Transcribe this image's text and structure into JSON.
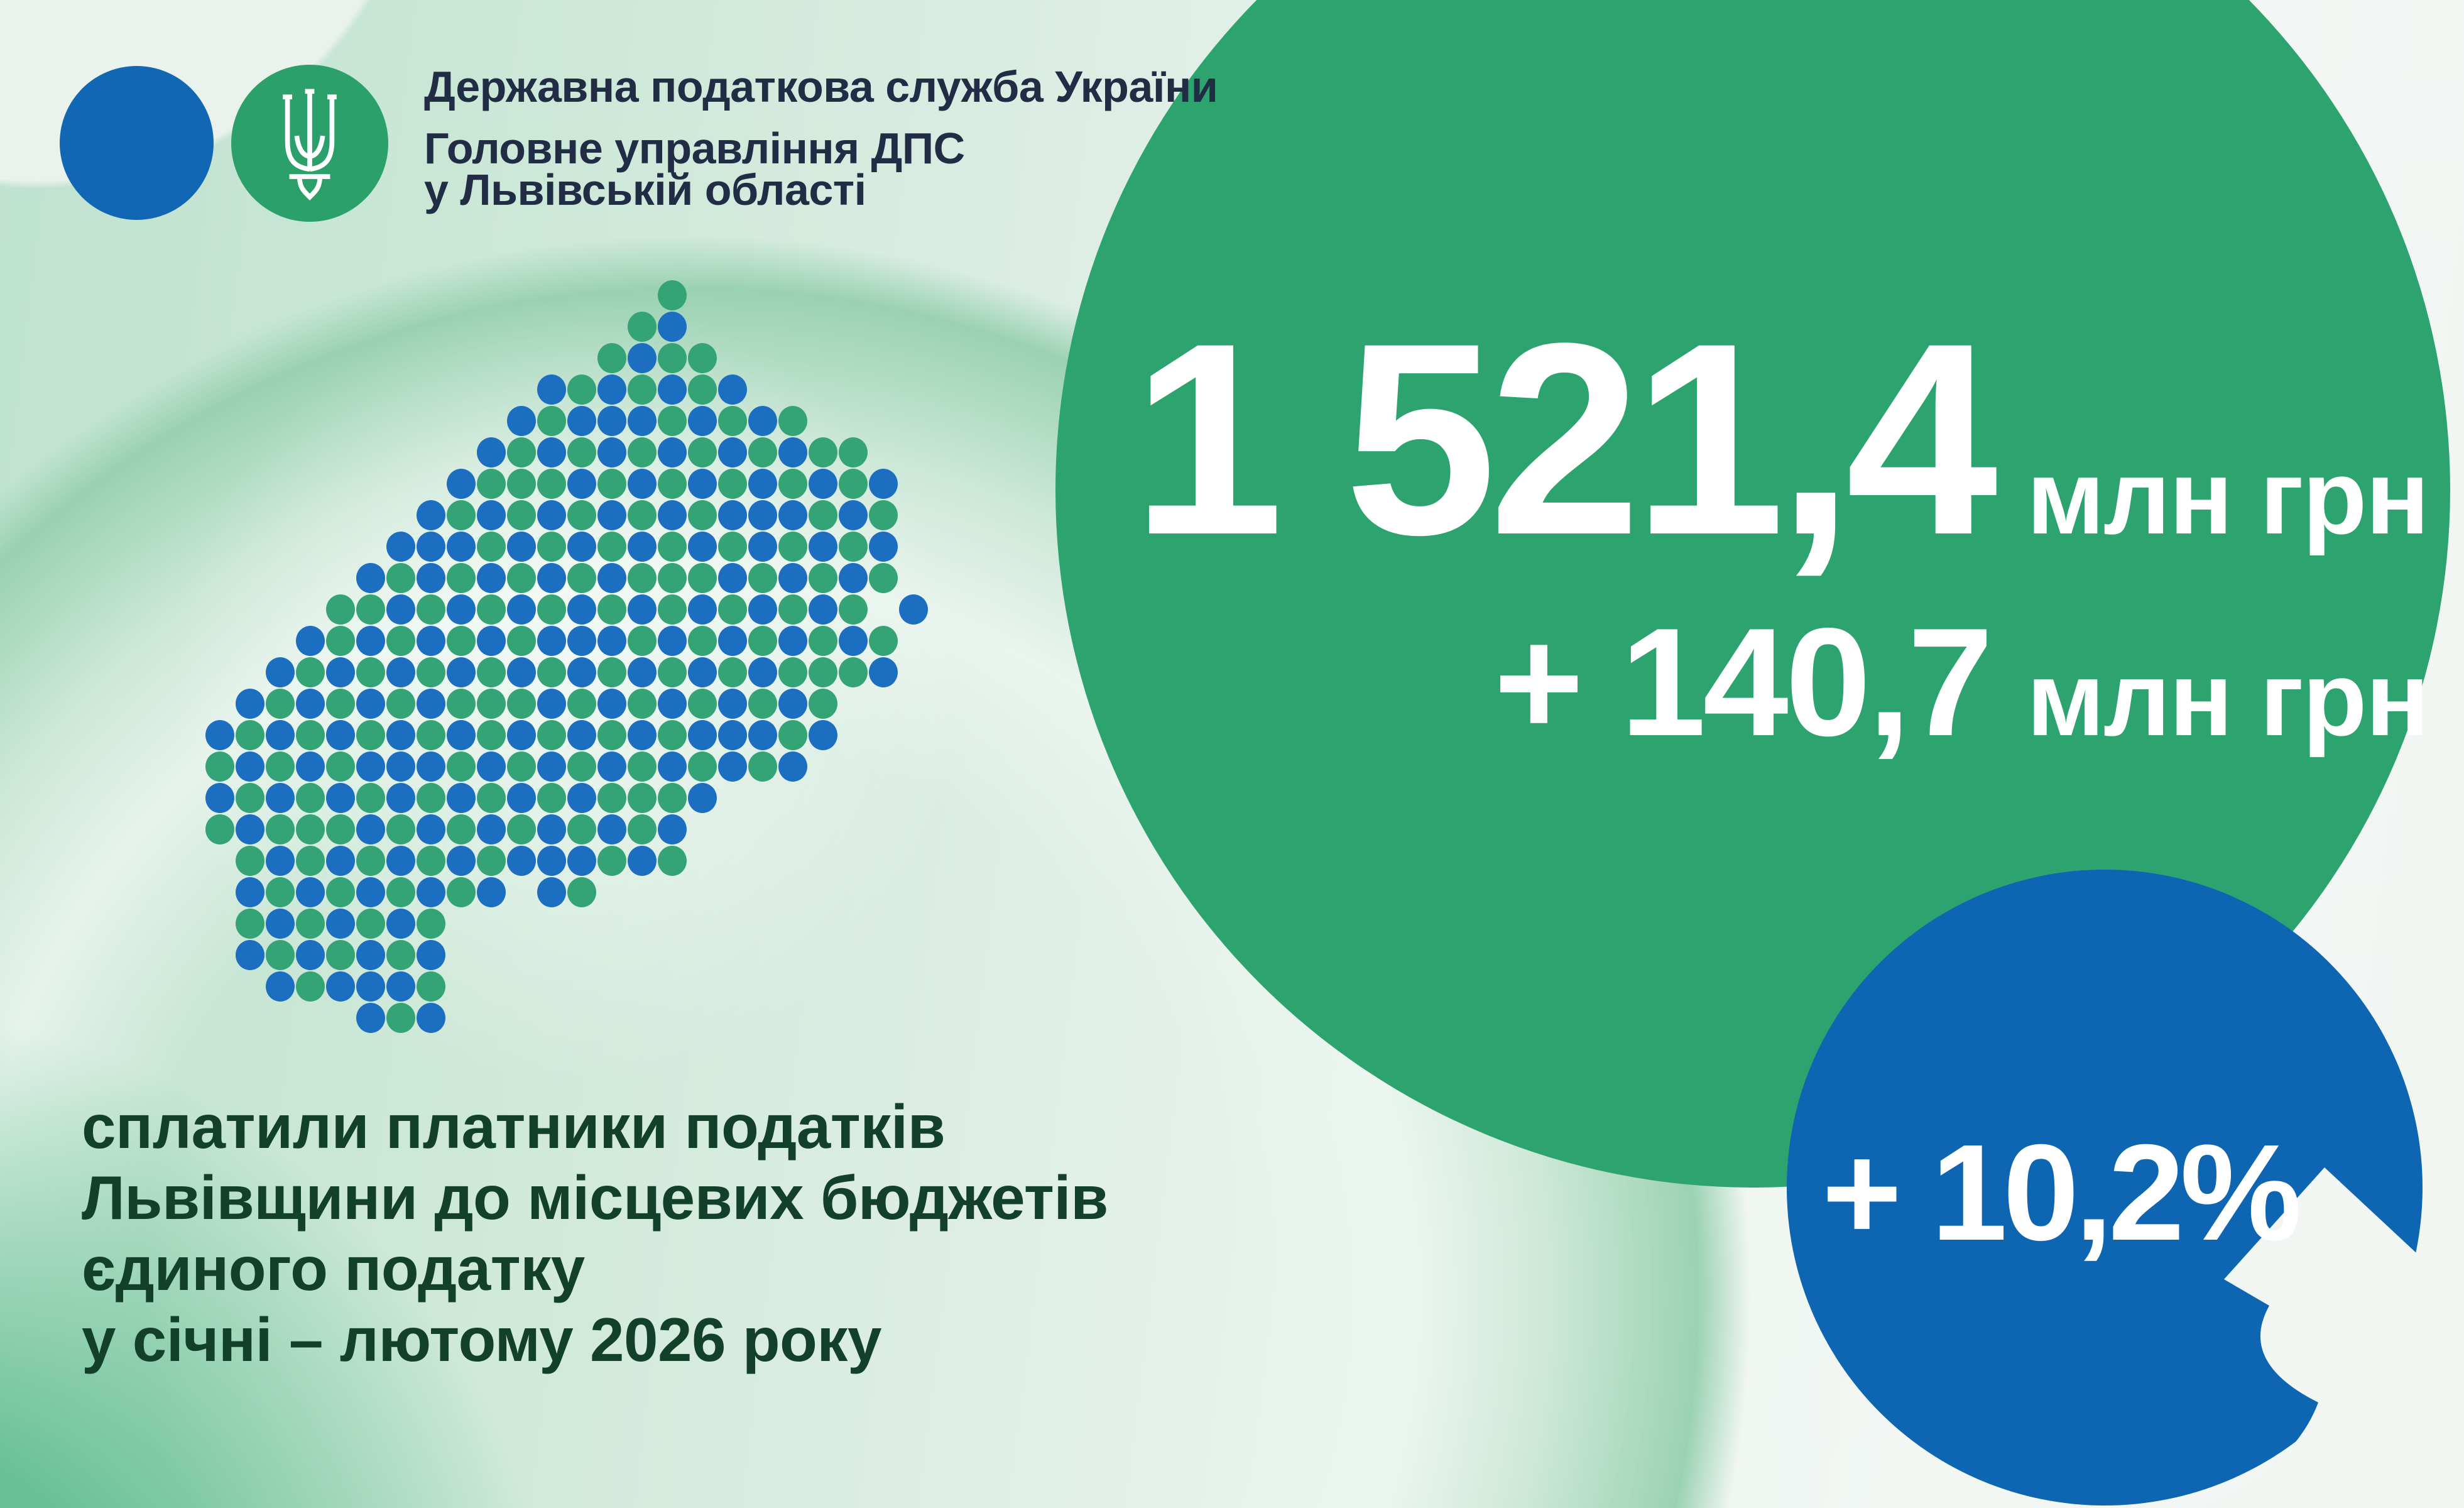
{
  "header": {
    "department": "Державна податкова служба України",
    "office_line1": "Головне управління ДПС",
    "office_line2": "у Львівській області"
  },
  "stats": {
    "total": {
      "value": "1 521,4",
      "unit": "млн грн"
    },
    "delta": {
      "value": "+ 140,7",
      "unit": "млн грн"
    },
    "percent": "+ 10,2%"
  },
  "description": {
    "lines": [
      "сплатили платники податків",
      "Львівщини до місцевих бюджетів",
      "єдиного податку",
      "у січні – лютому 2026 року"
    ]
  },
  "map": {
    "dot_colors": {
      "blue": "#1b6ec0",
      "green": "#34a476"
    },
    "rows": [
      [
        [
          15,
          15
        ]
      ],
      [
        [
          14,
          15
        ]
      ],
      [
        [
          13,
          16
        ]
      ],
      [
        [
          11,
          17
        ]
      ],
      [
        [
          10,
          19
        ]
      ],
      [
        [
          9,
          21
        ]
      ],
      [
        [
          8,
          22
        ]
      ],
      [
        [
          7,
          22
        ]
      ],
      [
        [
          6,
          22
        ]
      ],
      [
        [
          5,
          22
        ]
      ],
      [
        [
          4,
          21
        ],
        [
          23,
          23
        ]
      ],
      [
        [
          3,
          22
        ]
      ],
      [
        [
          2,
          22
        ]
      ],
      [
        [
          1,
          20
        ]
      ],
      [
        [
          0,
          20
        ]
      ],
      [
        [
          0,
          19
        ]
      ],
      [
        [
          0,
          16
        ]
      ],
      [
        [
          0,
          15
        ]
      ],
      [
        [
          1,
          15
        ]
      ],
      [
        [
          1,
          9
        ],
        [
          11,
          12
        ]
      ],
      [
        [
          1,
          7
        ]
      ],
      [
        [
          1,
          7
        ]
      ],
      [
        [
          2,
          7
        ]
      ],
      [
        [
          5,
          7
        ]
      ]
    ]
  },
  "colors": {
    "accent_green": "#2da470",
    "accent_blue": "#0e65b2",
    "logo_blue": "#1267b4",
    "logo_green": "#2ba06a",
    "header_text": "#212d44",
    "description_text": "#12402a",
    "stat_text": "#ffffff"
  }
}
